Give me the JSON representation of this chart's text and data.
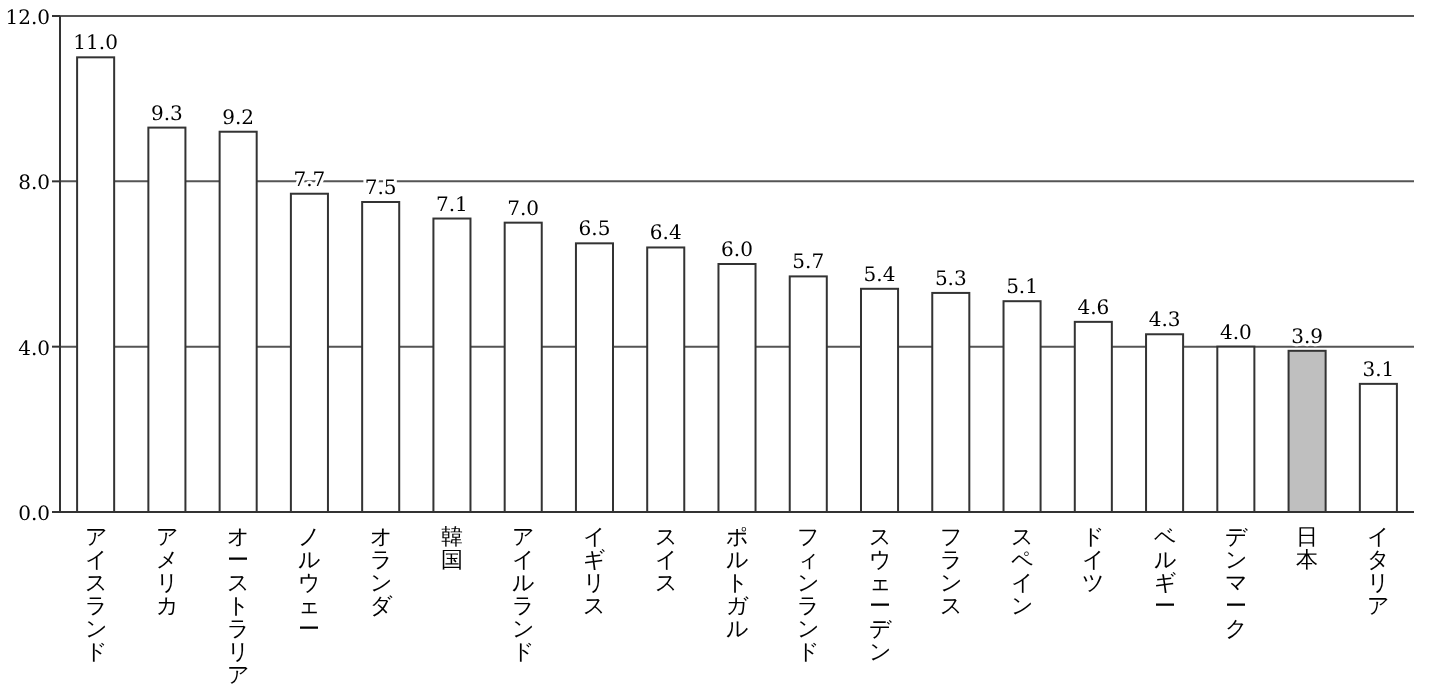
{
  "chart_data": {
    "type": "bar",
    "categories": [
      "アイスランド",
      "アメリカ",
      "オーストラリア",
      "ノルウェー",
      "オランダ",
      "韓国",
      "アイルランド",
      "イギリス",
      "スイス",
      "ポルトガル",
      "フィンランド",
      "スウェーデン",
      "フランス",
      "スペイン",
      "ドイツ",
      "ベルギー",
      "デンマーク",
      "日本",
      "イタリア"
    ],
    "values": [
      11.0,
      9.3,
      9.2,
      7.7,
      7.5,
      7.1,
      7.0,
      6.5,
      6.4,
      6.0,
      5.7,
      5.4,
      5.3,
      5.1,
      4.6,
      4.3,
      4.0,
      3.9,
      3.1
    ],
    "value_labels": [
      "11.0",
      "9.3",
      "9.2",
      "7.7",
      "7.5",
      "7.1",
      "7.0",
      "6.5",
      "6.4",
      "6.0",
      "5.7",
      "5.4",
      "5.3",
      "5.1",
      "4.6",
      "4.3",
      "4.0",
      "3.9",
      "3.1"
    ],
    "colors": [
      "#ffffff",
      "#ffffff",
      "#ffffff",
      "#ffffff",
      "#ffffff",
      "#ffffff",
      "#ffffff",
      "#ffffff",
      "#ffffff",
      "#ffffff",
      "#ffffff",
      "#ffffff",
      "#ffffff",
      "#ffffff",
      "#ffffff",
      "#ffffff",
      "#ffffff",
      "#bfbfbf",
      "#ffffff"
    ],
    "ylim": [
      0,
      12
    ],
    "yticks": [
      {
        "value": 0,
        "label": "0.0"
      },
      {
        "value": 4,
        "label": "4.0"
      },
      {
        "value": 8,
        "label": "8.0"
      },
      {
        "value": 12,
        "label": "12.0"
      }
    ],
    "grid": "y"
  }
}
